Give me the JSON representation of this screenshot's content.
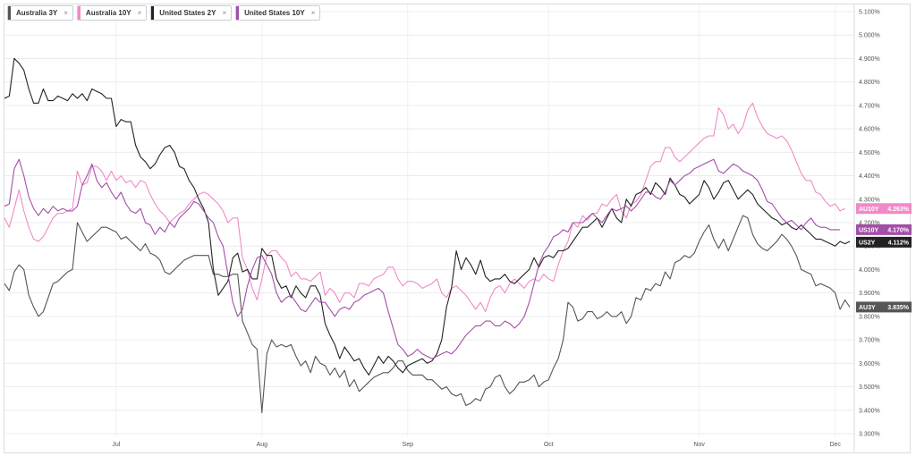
{
  "legend": [
    {
      "label": "Australia 3Y",
      "color": "#555555"
    },
    {
      "label": "Australia 10Y",
      "color": "#f08ac8"
    },
    {
      "label": "United States 2Y",
      "color": "#222222"
    },
    {
      "label": "United States 10Y",
      "color": "#a24fa6"
    }
  ],
  "close_symbol": "×",
  "chart_data": {
    "type": "line",
    "x_axis": {
      "ticks": [
        "Jul",
        "Aug",
        "Sep",
        "Oct",
        "Nov",
        "Dec"
      ],
      "tick_index": [
        23,
        53,
        83,
        112,
        143,
        171
      ]
    },
    "y_axis": {
      "ylim": [
        3.3,
        5.1
      ],
      "ticks": [
        "3.300%",
        "3.400%",
        "3.500%",
        "3.600%",
        "3.700%",
        "3.800%",
        "3.900%",
        "4.000%",
        "4.100%",
        "4.200%",
        "4.300%",
        "4.400%",
        "4.500%",
        "4.600%",
        "4.700%",
        "4.800%",
        "4.900%",
        "5.000%",
        "5.100%"
      ],
      "tick_values": [
        3.3,
        3.4,
        3.5,
        3.6,
        3.7,
        3.8,
        3.9,
        4.0,
        4.1,
        4.2,
        4.3,
        4.4,
        4.5,
        4.6,
        4.7,
        4.8,
        4.9,
        5.0,
        5.1
      ],
      "position": "right"
    },
    "grid": true,
    "series": [
      {
        "name": "Australia 3Y",
        "tag": "AU3Y",
        "last_label": "3.835%",
        "color": "#555555",
        "values": [
          3.94,
          3.91,
          3.99,
          4.02,
          4.0,
          3.89,
          3.84,
          3.8,
          3.82,
          3.88,
          3.94,
          3.95,
          3.97,
          3.99,
          4.0,
          4.2,
          4.16,
          4.12,
          4.14,
          4.16,
          4.18,
          4.18,
          4.17,
          4.16,
          4.13,
          4.14,
          4.12,
          4.1,
          4.08,
          4.11,
          4.07,
          4.06,
          4.04,
          3.99,
          3.98,
          4.0,
          4.02,
          4.04,
          4.05,
          4.06,
          4.06,
          4.06,
          4.06,
          3.98,
          3.98,
          3.97,
          3.97,
          3.98,
          3.98,
          3.78,
          3.73,
          3.68,
          3.66,
          3.39,
          3.64,
          3.7,
          3.67,
          3.68,
          3.67,
          3.68,
          3.63,
          3.59,
          3.61,
          3.56,
          3.63,
          3.6,
          3.59,
          3.55,
          3.58,
          3.54,
          3.57,
          3.5,
          3.53,
          3.48,
          3.5,
          3.52,
          3.54,
          3.55,
          3.56,
          3.56,
          3.58,
          3.61,
          3.61,
          3.57,
          3.55,
          3.55,
          3.55,
          3.53,
          3.53,
          3.51,
          3.49,
          3.5,
          3.47,
          3.46,
          3.47,
          3.42,
          3.43,
          3.45,
          3.44,
          3.49,
          3.5,
          3.54,
          3.55,
          3.5,
          3.47,
          3.49,
          3.52,
          3.52,
          3.53,
          3.55,
          3.5,
          3.52,
          3.53,
          3.58,
          3.62,
          3.7,
          3.86,
          3.84,
          3.78,
          3.79,
          3.82,
          3.82,
          3.79,
          3.8,
          3.82,
          3.8,
          3.8,
          3.82,
          3.77,
          3.8,
          3.88,
          3.87,
          3.92,
          3.91,
          3.94,
          3.93,
          3.99,
          3.96,
          4.03,
          4.04,
          4.06,
          4.05,
          4.07,
          4.12,
          4.16,
          4.19,
          4.13,
          4.09,
          4.13,
          4.08,
          4.13,
          4.18,
          4.23,
          4.22,
          4.15,
          4.11,
          4.09,
          4.08,
          4.1,
          4.12,
          4.15,
          4.13,
          4.1,
          4.06,
          4.0,
          3.99,
          3.98,
          3.93,
          3.94,
          3.93,
          3.92,
          3.9,
          3.83,
          3.87,
          3.84
        ]
      },
      {
        "name": "Australia 10Y",
        "tag": "AU10Y",
        "last_label": "4.263%",
        "color": "#f08ac8",
        "values": [
          4.22,
          4.18,
          4.26,
          4.34,
          4.25,
          4.18,
          4.13,
          4.12,
          4.14,
          4.18,
          4.22,
          4.24,
          4.24,
          4.25,
          4.26,
          4.42,
          4.36,
          4.37,
          4.44,
          4.44,
          4.42,
          4.38,
          4.42,
          4.38,
          4.4,
          4.37,
          4.38,
          4.35,
          4.38,
          4.37,
          4.32,
          4.28,
          4.25,
          4.23,
          4.2,
          4.22,
          4.24,
          4.25,
          4.28,
          4.3,
          4.32,
          4.33,
          4.32,
          4.3,
          4.28,
          4.25,
          4.2,
          4.22,
          4.22,
          4.05,
          4.0,
          3.92,
          3.87,
          3.96,
          4.06,
          4.08,
          4.08,
          4.05,
          4.03,
          3.97,
          3.99,
          3.96,
          3.96,
          3.95,
          3.97,
          3.99,
          3.89,
          3.92,
          3.9,
          3.86,
          3.9,
          3.9,
          3.88,
          3.94,
          3.94,
          3.93,
          3.96,
          3.97,
          3.98,
          4.01,
          4.01,
          3.96,
          3.93,
          3.95,
          3.95,
          3.94,
          3.92,
          3.93,
          3.94,
          3.96,
          3.9,
          3.88,
          3.92,
          3.93,
          3.91,
          3.89,
          3.86,
          3.83,
          3.86,
          3.82,
          3.88,
          3.92,
          3.93,
          3.9,
          3.94,
          3.96,
          3.94,
          3.92,
          3.95,
          3.96,
          3.95,
          3.98,
          3.96,
          3.95,
          4.02,
          4.08,
          4.12,
          4.2,
          4.18,
          4.23,
          4.21,
          4.24,
          4.24,
          4.28,
          4.27,
          4.3,
          4.32,
          4.25,
          4.22,
          4.28,
          4.29,
          4.32,
          4.38,
          4.44,
          4.46,
          4.46,
          4.52,
          4.52,
          4.48,
          4.46,
          4.48,
          4.5,
          4.52,
          4.54,
          4.56,
          4.57,
          4.57,
          4.69,
          4.66,
          4.6,
          4.62,
          4.58,
          4.61,
          4.68,
          4.71,
          4.65,
          4.61,
          4.58,
          4.57,
          4.56,
          4.57,
          4.55,
          4.51,
          4.46,
          4.41,
          4.38,
          4.38,
          4.33,
          4.32,
          4.29,
          4.27,
          4.28,
          4.25,
          4.26
        ]
      },
      {
        "name": "United States 2Y",
        "tag": "US2Y",
        "last_label": "4.112%",
        "color": "#222222",
        "values": [
          4.73,
          4.74,
          4.9,
          4.88,
          4.85,
          4.77,
          4.71,
          4.71,
          4.77,
          4.72,
          4.72,
          4.74,
          4.73,
          4.72,
          4.75,
          4.73,
          4.75,
          4.72,
          4.77,
          4.76,
          4.75,
          4.73,
          4.73,
          4.61,
          4.64,
          4.63,
          4.63,
          4.53,
          4.48,
          4.46,
          4.43,
          4.45,
          4.49,
          4.52,
          4.53,
          4.5,
          4.44,
          4.43,
          4.38,
          4.35,
          4.3,
          4.26,
          4.2,
          4.0,
          3.89,
          3.92,
          3.95,
          4.05,
          4.07,
          3.99,
          4.0,
          3.96,
          3.96,
          4.09,
          4.06,
          4.06,
          3.96,
          3.92,
          3.93,
          3.88,
          3.93,
          3.9,
          3.88,
          3.93,
          3.93,
          3.89,
          3.77,
          3.72,
          3.68,
          3.62,
          3.67,
          3.64,
          3.61,
          3.62,
          3.58,
          3.55,
          3.59,
          3.63,
          3.6,
          3.63,
          3.61,
          3.58,
          3.56,
          3.59,
          3.6,
          3.61,
          3.62,
          3.6,
          3.61,
          3.64,
          3.7,
          3.84,
          3.92,
          4.08,
          4.0,
          4.05,
          4.02,
          3.98,
          4.04,
          3.97,
          3.95,
          3.96,
          3.96,
          3.98,
          3.95,
          3.94,
          3.96,
          3.98,
          4.0,
          4.05,
          4.01,
          4.05,
          4.06,
          4.05,
          4.08,
          4.08,
          4.09,
          4.12,
          4.15,
          4.18,
          4.18,
          4.2,
          4.22,
          4.18,
          4.22,
          4.26,
          4.22,
          4.2,
          4.3,
          4.27,
          4.32,
          4.33,
          4.35,
          4.32,
          4.37,
          4.35,
          4.32,
          4.39,
          4.36,
          4.32,
          4.31,
          4.28,
          4.3,
          4.32,
          4.38,
          4.35,
          4.3,
          4.33,
          4.37,
          4.38,
          4.34,
          4.3,
          4.32,
          4.34,
          4.32,
          4.28,
          4.26,
          4.24,
          4.22,
          4.21,
          4.19,
          4.2,
          4.18,
          4.17,
          4.19,
          4.17,
          4.15,
          4.13,
          4.13,
          4.12,
          4.11,
          4.1,
          4.12,
          4.11,
          4.12
        ]
      },
      {
        "name": "United States 10Y",
        "tag": "US10Y",
        "last_label": "4.170%",
        "color": "#a24fa6",
        "values": [
          4.27,
          4.28,
          4.43,
          4.47,
          4.4,
          4.31,
          4.26,
          4.23,
          4.26,
          4.24,
          4.27,
          4.25,
          4.26,
          4.25,
          4.25,
          4.27,
          4.36,
          4.4,
          4.45,
          4.38,
          4.35,
          4.37,
          4.33,
          4.3,
          4.33,
          4.28,
          4.25,
          4.24,
          4.26,
          4.2,
          4.19,
          4.15,
          4.18,
          4.16,
          4.2,
          4.18,
          4.22,
          4.24,
          4.26,
          4.29,
          4.28,
          4.25,
          4.22,
          4.2,
          4.14,
          4.1,
          3.98,
          3.86,
          3.8,
          3.83,
          3.93,
          4.0,
          4.05,
          4.06,
          4.02,
          3.98,
          3.9,
          3.86,
          3.88,
          3.89,
          3.86,
          3.83,
          3.82,
          3.85,
          3.88,
          3.86,
          3.86,
          3.83,
          3.8,
          3.83,
          3.84,
          3.83,
          3.86,
          3.87,
          3.89,
          3.9,
          3.91,
          3.92,
          3.9,
          3.82,
          3.75,
          3.68,
          3.66,
          3.63,
          3.64,
          3.66,
          3.64,
          3.63,
          3.62,
          3.63,
          3.64,
          3.65,
          3.64,
          3.66,
          3.69,
          3.72,
          3.74,
          3.76,
          3.76,
          3.78,
          3.78,
          3.76,
          3.76,
          3.78,
          3.77,
          3.75,
          3.77,
          3.8,
          3.86,
          3.94,
          4.02,
          4.07,
          4.1,
          4.14,
          4.15,
          4.17,
          4.16,
          4.2,
          4.2,
          4.2,
          4.22,
          4.24,
          4.22,
          4.2,
          4.23,
          4.26,
          4.25,
          4.26,
          4.27,
          4.25,
          4.27,
          4.3,
          4.33,
          4.33,
          4.31,
          4.3,
          4.33,
          4.38,
          4.36,
          4.38,
          4.4,
          4.41,
          4.43,
          4.44,
          4.45,
          4.46,
          4.47,
          4.42,
          4.41,
          4.43,
          4.45,
          4.44,
          4.42,
          4.41,
          4.4,
          4.38,
          4.34,
          4.29,
          4.28,
          4.25,
          4.22,
          4.2,
          4.21,
          4.19,
          4.17,
          4.2,
          4.22,
          4.19,
          4.18,
          4.18,
          4.17,
          4.17,
          4.17
        ]
      }
    ]
  }
}
